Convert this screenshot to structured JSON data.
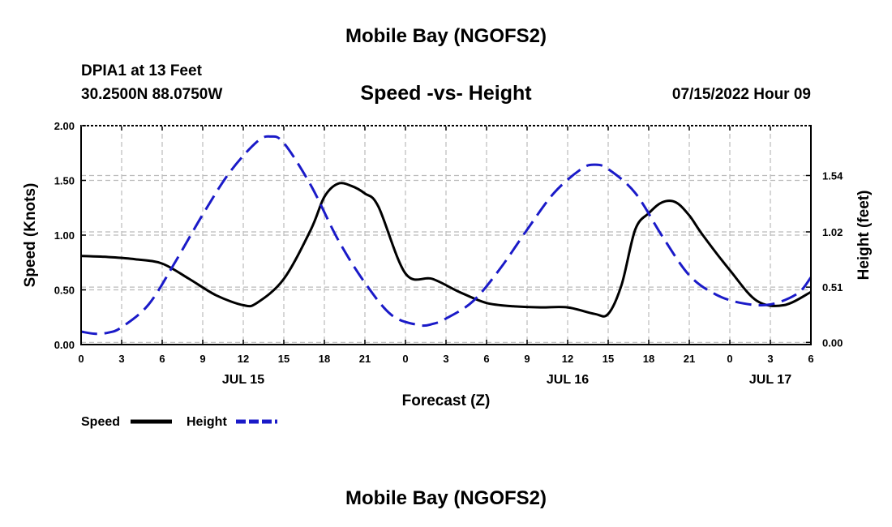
{
  "header": {
    "title": "Mobile Bay (NGOFS2)",
    "station": "DPIA1 at 13 Feet",
    "coords": "30.2500N  88.0750W",
    "subtitle": "Speed -vs- Height",
    "timestamp": "07/15/2022 Hour 09"
  },
  "footer": {
    "title": "Mobile Bay (NGOFS2)"
  },
  "colors": {
    "speed": "#000000",
    "height": "#1a1ac8",
    "grid": "#bbbbbb"
  },
  "chart_data": {
    "type": "line",
    "xlabel": "Forecast (Z)",
    "ylabel": "Speed (Knots)",
    "y2label": "Height (feet)",
    "xlim": [
      0,
      54
    ],
    "ylim": [
      0,
      2.0
    ],
    "y2lim": [
      -0.02,
      2.0
    ],
    "x_tick_values": [
      0,
      3,
      6,
      9,
      12,
      15,
      18,
      21,
      24,
      27,
      30,
      33,
      36,
      39,
      42,
      45,
      48,
      51,
      54
    ],
    "x_tick_labels": [
      "0",
      "3",
      "6",
      "9",
      "12",
      "15",
      "18",
      "21",
      "0",
      "3",
      "6",
      "9",
      "12",
      "15",
      "18",
      "21",
      "0",
      "3",
      "6"
    ],
    "date_labels": [
      {
        "x": 12,
        "label": "JUL 15"
      },
      {
        "x": 36,
        "label": "JUL 16"
      },
      {
        "x": 51,
        "label": "JUL 17"
      }
    ],
    "y_ticks": [
      0,
      0.5,
      1.0,
      1.5,
      2.0
    ],
    "y_tick_labels": [
      "0.00",
      "0.50",
      "1.00",
      "1.50",
      "2.00"
    ],
    "y2_ticks": [
      0.0,
      0.51,
      1.02,
      1.54
    ],
    "y2_tick_labels": [
      "0.00",
      "0.51",
      "1.02",
      "1.54"
    ],
    "series": [
      {
        "name": "Speed",
        "axis": "left",
        "style": "solid",
        "x": [
          0,
          2,
          4,
          6,
          8,
          10,
          12,
          13,
          15,
          17,
          18,
          19,
          20,
          21,
          22,
          24,
          26,
          28,
          30,
          32,
          34,
          36,
          38,
          39,
          40,
          41,
          42,
          43,
          44,
          45,
          46,
          48,
          50,
          52,
          54
        ],
        "values": [
          0.81,
          0.8,
          0.78,
          0.74,
          0.6,
          0.45,
          0.36,
          0.38,
          0.6,
          1.05,
          1.35,
          1.47,
          1.45,
          1.38,
          1.26,
          0.65,
          0.6,
          0.48,
          0.38,
          0.35,
          0.34,
          0.34,
          0.28,
          0.28,
          0.55,
          1.05,
          1.2,
          1.3,
          1.3,
          1.18,
          1.0,
          0.68,
          0.4,
          0.36,
          0.48
        ]
      },
      {
        "name": "Height",
        "axis": "right",
        "style": "dashed",
        "x": [
          0,
          1,
          2,
          3,
          5,
          7,
          9,
          11,
          13,
          14,
          15,
          17,
          19,
          21,
          23,
          25,
          26,
          27,
          29,
          31,
          33,
          35,
          37,
          38,
          39,
          41,
          43,
          45,
          47,
          49,
          51,
          53,
          54
        ],
        "values": [
          0.1,
          0.08,
          0.09,
          0.14,
          0.35,
          0.75,
          1.18,
          1.57,
          1.85,
          1.9,
          1.84,
          1.45,
          0.95,
          0.55,
          0.25,
          0.16,
          0.17,
          0.22,
          0.38,
          0.68,
          1.04,
          1.38,
          1.6,
          1.64,
          1.6,
          1.38,
          0.98,
          0.62,
          0.44,
          0.36,
          0.35,
          0.45,
          0.6
        ]
      }
    ],
    "legend": [
      {
        "label": "Speed",
        "series": "Speed"
      },
      {
        "label": "Height",
        "series": "Height"
      }
    ],
    "grid": true
  }
}
